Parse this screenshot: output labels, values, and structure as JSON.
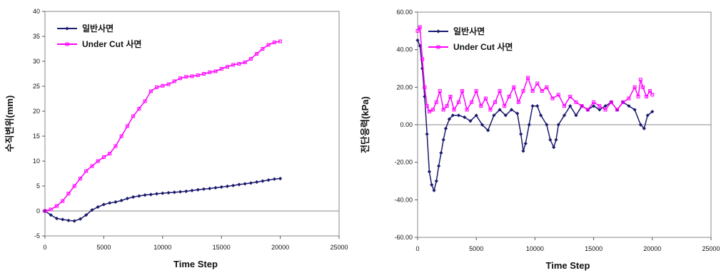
{
  "chart_data": [
    {
      "type": "line",
      "xlabel": "Time Step",
      "ylabel": "수직변위(mm)",
      "xlim": [
        0,
        25000
      ],
      "ylim": [
        -5,
        40
      ],
      "x_ticks": [
        "0",
        "5000",
        "10000",
        "15000",
        "20000",
        "25000"
      ],
      "y_ticks": [
        "-5",
        "0",
        "5",
        "10",
        "15",
        "20",
        "25",
        "30",
        "35",
        "40"
      ],
      "legend_position": "top-left",
      "grid": false,
      "series": [
        {
          "name": "일반사면",
          "color": "#1a1a6e",
          "marker": "diamond",
          "points": [
            [
              0,
              0
            ],
            [
              500,
              -0.8
            ],
            [
              1000,
              -1.5
            ],
            [
              1500,
              -1.7
            ],
            [
              2000,
              -1.9
            ],
            [
              2500,
              -2.0
            ],
            [
              3000,
              -1.6
            ],
            [
              3500,
              -0.8
            ],
            [
              4000,
              0.2
            ],
            [
              4500,
              0.8
            ],
            [
              5000,
              1.3
            ],
            [
              5500,
              1.6
            ],
            [
              6000,
              1.8
            ],
            [
              6500,
              2.1
            ],
            [
              7000,
              2.5
            ],
            [
              7500,
              2.8
            ],
            [
              8000,
              3.0
            ],
            [
              8500,
              3.2
            ],
            [
              9000,
              3.3
            ],
            [
              9500,
              3.45
            ],
            [
              10000,
              3.55
            ],
            [
              10500,
              3.65
            ],
            [
              11000,
              3.75
            ],
            [
              11500,
              3.85
            ],
            [
              12000,
              3.95
            ],
            [
              12500,
              4.1
            ],
            [
              13000,
              4.25
            ],
            [
              13500,
              4.4
            ],
            [
              14000,
              4.5
            ],
            [
              14500,
              4.65
            ],
            [
              15000,
              4.8
            ],
            [
              15500,
              4.95
            ],
            [
              16000,
              5.1
            ],
            [
              16500,
              5.3
            ],
            [
              17000,
              5.45
            ],
            [
              17500,
              5.6
            ],
            [
              18000,
              5.8
            ],
            [
              18500,
              6.0
            ],
            [
              19000,
              6.2
            ],
            [
              19500,
              6.4
            ],
            [
              20000,
              6.5
            ]
          ]
        },
        {
          "name": "Under Cut 사면",
          "color": "#ff00ff",
          "marker": "square",
          "points": [
            [
              0,
              0
            ],
            [
              500,
              0.3
            ],
            [
              1000,
              1.0
            ],
            [
              1500,
              2.0
            ],
            [
              2000,
              3.5
            ],
            [
              2500,
              5.0
            ],
            [
              3000,
              6.5
            ],
            [
              3500,
              8.0
            ],
            [
              4000,
              9.0
            ],
            [
              4500,
              10.0
            ],
            [
              5000,
              10.8
            ],
            [
              5500,
              11.5
            ],
            [
              6000,
              13.0
            ],
            [
              6500,
              15.0
            ],
            [
              7000,
              17.0
            ],
            [
              7500,
              19.0
            ],
            [
              8000,
              20.5
            ],
            [
              8500,
              22.0
            ],
            [
              9000,
              24.0
            ],
            [
              9500,
              24.8
            ],
            [
              10000,
              25.1
            ],
            [
              10500,
              25.4
            ],
            [
              11000,
              26.0
            ],
            [
              11500,
              26.6
            ],
            [
              12000,
              26.9
            ],
            [
              12500,
              27.0
            ],
            [
              13000,
              27.2
            ],
            [
              13500,
              27.5
            ],
            [
              14000,
              27.8
            ],
            [
              14500,
              28.0
            ],
            [
              15000,
              28.5
            ],
            [
              15500,
              28.9
            ],
            [
              16000,
              29.3
            ],
            [
              16500,
              29.5
            ],
            [
              17000,
              29.8
            ],
            [
              17500,
              30.5
            ],
            [
              18000,
              31.5
            ],
            [
              18500,
              32.5
            ],
            [
              19000,
              33.3
            ],
            [
              19500,
              33.8
            ],
            [
              20000,
              34.0
            ]
          ]
        }
      ]
    },
    {
      "type": "line",
      "xlabel": "Time Step",
      "ylabel": "전단응력(kPa)",
      "xlim": [
        0,
        25000
      ],
      "ylim": [
        -60,
        60
      ],
      "x_ticks": [
        "0",
        "5000",
        "10000",
        "15000",
        "20000",
        "25000"
      ],
      "y_ticks": [
        "-60.00",
        "-40.00",
        "-20.00",
        "0.00",
        "20.00",
        "40.00",
        "60.00"
      ],
      "legend_position": "top-left",
      "grid": false,
      "series": [
        {
          "name": "일반사면",
          "color": "#1a1a6e",
          "marker": "diamond",
          "points": [
            [
              0,
              45
            ],
            [
              200,
              42
            ],
            [
              400,
              30
            ],
            [
              600,
              15
            ],
            [
              800,
              -5
            ],
            [
              1000,
              -25
            ],
            [
              1200,
              -32
            ],
            [
              1400,
              -35
            ],
            [
              1600,
              -30
            ],
            [
              1800,
              -22
            ],
            [
              2000,
              -15
            ],
            [
              2200,
              -8
            ],
            [
              2400,
              -2
            ],
            [
              2700,
              3
            ],
            [
              3000,
              5
            ],
            [
              3500,
              5
            ],
            [
              4000,
              4
            ],
            [
              4500,
              2
            ],
            [
              5000,
              5
            ],
            [
              5500,
              0
            ],
            [
              6000,
              -3
            ],
            [
              6500,
              5
            ],
            [
              7000,
              8
            ],
            [
              7500,
              5
            ],
            [
              8000,
              8
            ],
            [
              8500,
              6
            ],
            [
              8800,
              -5
            ],
            [
              9000,
              -14
            ],
            [
              9200,
              -10
            ],
            [
              9500,
              0
            ],
            [
              9800,
              10
            ],
            [
              10200,
              10
            ],
            [
              10500,
              5
            ],
            [
              11000,
              0
            ],
            [
              11300,
              -8
            ],
            [
              11600,
              -12
            ],
            [
              11800,
              -8
            ],
            [
              12000,
              0
            ],
            [
              12500,
              5
            ],
            [
              13000,
              10
            ],
            [
              13500,
              5
            ],
            [
              14000,
              10
            ],
            [
              14500,
              8
            ],
            [
              15000,
              10
            ],
            [
              15500,
              8
            ],
            [
              16000,
              10
            ],
            [
              16500,
              12
            ],
            [
              17000,
              8
            ],
            [
              17500,
              12
            ],
            [
              18000,
              10
            ],
            [
              18500,
              8
            ],
            [
              19000,
              0
            ],
            [
              19300,
              -2
            ],
            [
              19600,
              5
            ],
            [
              20000,
              7
            ]
          ]
        },
        {
          "name": "Under Cut 사면",
          "color": "#ff00ff",
          "marker": "square",
          "points": [
            [
              0,
              50
            ],
            [
              200,
              52
            ],
            [
              400,
              35
            ],
            [
              600,
              20
            ],
            [
              800,
              10
            ],
            [
              1000,
              7
            ],
            [
              1300,
              8
            ],
            [
              1600,
              12
            ],
            [
              1900,
              18
            ],
            [
              2200,
              8
            ],
            [
              2500,
              10
            ],
            [
              2800,
              15
            ],
            [
              3100,
              8
            ],
            [
              3500,
              12
            ],
            [
              3800,
              18
            ],
            [
              4200,
              8
            ],
            [
              4600,
              12
            ],
            [
              5000,
              18
            ],
            [
              5400,
              10
            ],
            [
              5800,
              14
            ],
            [
              6200,
              8
            ],
            [
              6600,
              12
            ],
            [
              7000,
              18
            ],
            [
              7400,
              10
            ],
            [
              7800,
              15
            ],
            [
              8200,
              20
            ],
            [
              8600,
              12
            ],
            [
              9000,
              18
            ],
            [
              9400,
              25
            ],
            [
              9800,
              18
            ],
            [
              10200,
              22
            ],
            [
              10600,
              18
            ],
            [
              11000,
              20
            ],
            [
              11500,
              14
            ],
            [
              12000,
              16
            ],
            [
              12500,
              10
            ],
            [
              13000,
              15
            ],
            [
              13500,
              12
            ],
            [
              14000,
              10
            ],
            [
              14500,
              8
            ],
            [
              15000,
              12
            ],
            [
              15500,
              10
            ],
            [
              16000,
              8
            ],
            [
              16500,
              12
            ],
            [
              17000,
              8
            ],
            [
              17500,
              12
            ],
            [
              18000,
              14
            ],
            [
              18500,
              20
            ],
            [
              18800,
              15
            ],
            [
              19000,
              24
            ],
            [
              19200,
              20
            ],
            [
              19500,
              15
            ],
            [
              19800,
              18
            ],
            [
              20000,
              16
            ]
          ]
        }
      ]
    }
  ]
}
